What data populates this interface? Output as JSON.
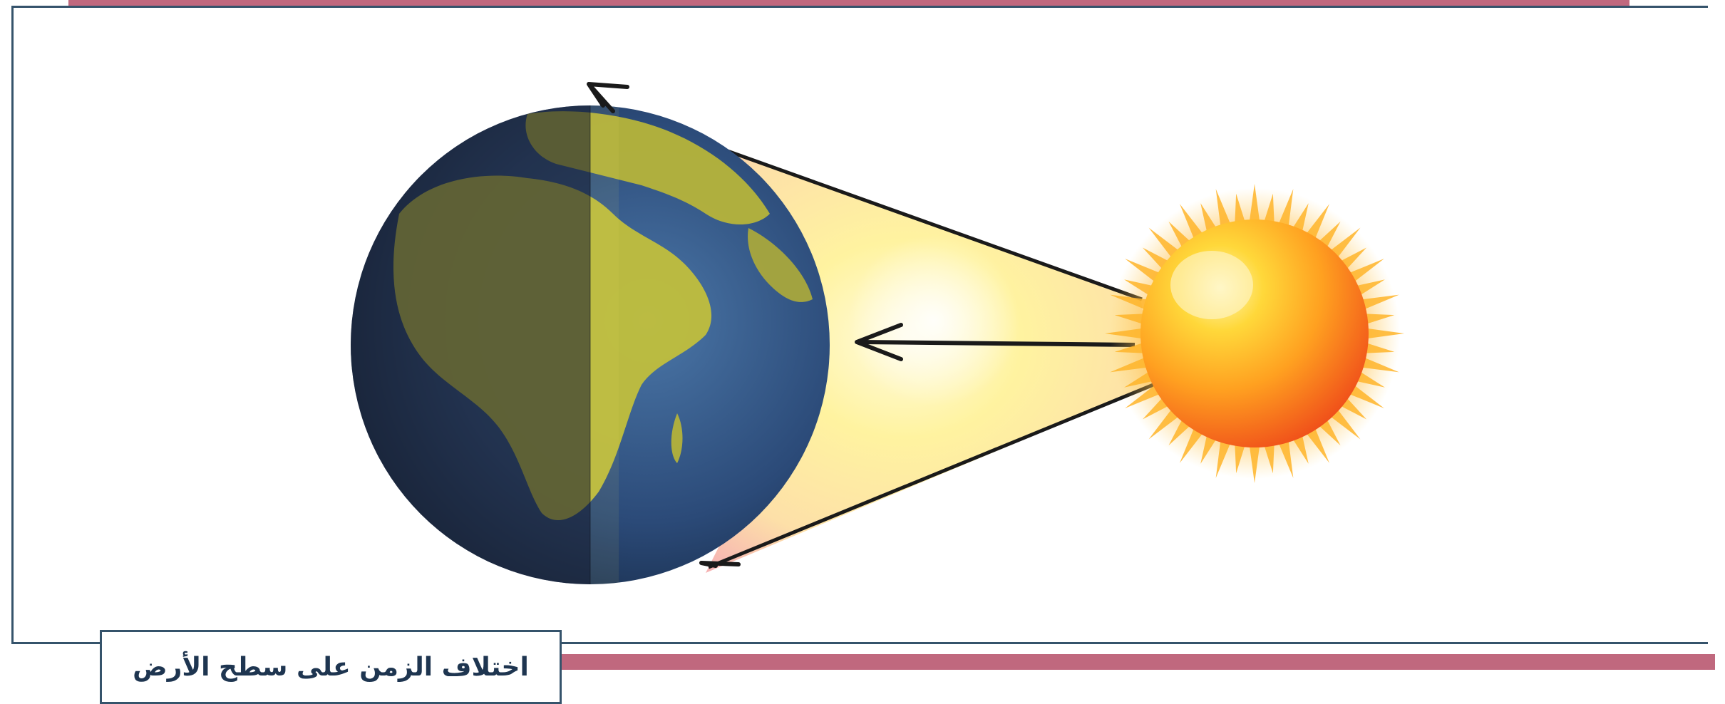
{
  "caption": {
    "text": "اختلاف الزمن على سطح الأرض"
  },
  "colors": {
    "accent_bar": "#c0687e",
    "frame_border": "#35536b",
    "caption_text": "#1e3550",
    "sun_core": "#ffcc22",
    "sun_edge": "#f05a14",
    "light_beam": "#fff6a0",
    "ocean": "#2c4c78",
    "land_lit": "#b9b63a",
    "night_side": "#2a2f3c"
  },
  "icons": {
    "sun": "sun-icon",
    "earth": "earth-globe-icon",
    "rotation_top": "rotation-arrow-icon",
    "rotation_bottom": "rotation-arrow-icon",
    "light_ray": "light-ray-arrow-icon"
  }
}
